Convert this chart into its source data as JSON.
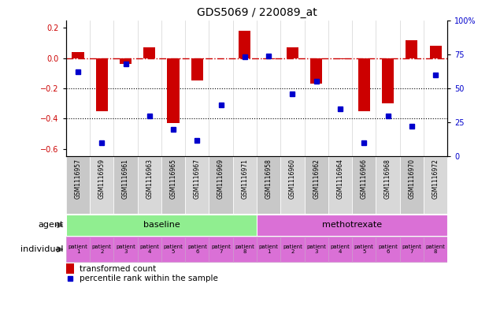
{
  "title": "GDS5069 / 220089_at",
  "samples": [
    "GSM1116957",
    "GSM1116959",
    "GSM1116961",
    "GSM1116963",
    "GSM1116965",
    "GSM1116967",
    "GSM1116969",
    "GSM1116971",
    "GSM1116958",
    "GSM1116960",
    "GSM1116962",
    "GSM1116964",
    "GSM1116966",
    "GSM1116968",
    "GSM1116970",
    "GSM1116972"
  ],
  "bar_values": [
    0.04,
    -0.35,
    -0.04,
    0.07,
    -0.43,
    -0.15,
    0.0,
    0.18,
    -0.01,
    0.07,
    -0.17,
    -0.01,
    -0.35,
    -0.3,
    0.12,
    0.08
  ],
  "percentile_values": [
    62,
    10,
    68,
    30,
    20,
    12,
    38,
    73,
    74,
    46,
    55,
    35,
    10,
    30,
    22,
    60
  ],
  "ylim_left": [
    -0.65,
    0.25
  ],
  "ylim_right": [
    0,
    100
  ],
  "yticks_left": [
    0.2,
    0.0,
    -0.2,
    -0.4,
    -0.6
  ],
  "yticks_right": [
    100,
    75,
    50,
    25,
    0
  ],
  "hline_y": 0.0,
  "dotted_hlines": [
    -0.2,
    -0.4
  ],
  "agent_groups": [
    {
      "label": "baseline",
      "start": 0,
      "end": 8,
      "color": "#90EE90"
    },
    {
      "label": "methotrexate",
      "start": 8,
      "end": 16,
      "color": "#DA70D6"
    }
  ],
  "individual_color": "#DA70D6",
  "individual_grid_color": "#CC99CC",
  "patients": [
    "patient\n1",
    "patient\n2",
    "patient\n3",
    "patient\n4",
    "patient\n5",
    "patient\n6",
    "patient\n7",
    "patient\n8",
    "patient\n1",
    "patient\n2",
    "patient\n3",
    "patient\n4",
    "patient\n5",
    "patient\n6",
    "patient\n7",
    "patient\n8"
  ],
  "bar_color": "#CC0000",
  "percentile_color": "#0000CC",
  "bar_width": 0.5,
  "sample_box_color": "#C8C8C8",
  "sample_box_alt_color": "#D8D8D8",
  "legend_bar_label": "transformed count",
  "legend_pct_label": "percentile rank within the sample"
}
